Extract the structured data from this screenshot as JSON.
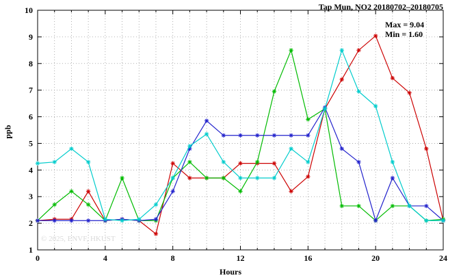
{
  "header": {
    "title": "Tap Mun, NO2 20180702–20180705"
  },
  "annotations": {
    "max_label": "Max = 9.04",
    "min_label": "Min = 1.60",
    "watermark": "© 2025, ENVF, HKUST"
  },
  "chart_data": {
    "type": "line",
    "title": "Tap Mun, NO2 20180702–20180705",
    "xlabel": "Hours",
    "ylabel": "ppb",
    "xlim": [
      0,
      24
    ],
    "ylim": [
      1,
      10
    ],
    "x_major_ticks": [
      0,
      4,
      8,
      12,
      16,
      20,
      24
    ],
    "y_ticks": [
      1,
      2,
      3,
      4,
      5,
      6,
      7,
      8,
      9,
      10
    ],
    "grid": "dotted",
    "legend": "none",
    "marker": "asterisk",
    "max": 9.04,
    "min": 1.6,
    "x": [
      0,
      1,
      2,
      3,
      4,
      5,
      6,
      7,
      8,
      9,
      10,
      11,
      12,
      13,
      14,
      15,
      16,
      17,
      18,
      19,
      20,
      21,
      22,
      23,
      24
    ],
    "series": [
      {
        "name": "red",
        "color": "#cc0000",
        "values": [
          2.1,
          2.15,
          2.15,
          3.2,
          2.1,
          2.15,
          2.1,
          1.6,
          4.25,
          3.7,
          3.7,
          3.7,
          4.25,
          4.25,
          4.25,
          3.2,
          3.75,
          6.3,
          7.4,
          8.5,
          9.04,
          7.45,
          6.9,
          4.8,
          2.1
        ]
      },
      {
        "name": "green",
        "color": "#00bb00",
        "values": [
          2.1,
          2.7,
          3.2,
          2.7,
          2.1,
          3.7,
          2.1,
          2.1,
          3.7,
          4.3,
          3.7,
          3.7,
          3.2,
          4.3,
          6.95,
          8.5,
          5.9,
          6.3,
          2.65,
          2.65,
          2.1,
          2.65,
          2.65,
          2.1,
          2.15
        ]
      },
      {
        "name": "blue",
        "color": "#2222cc",
        "values": [
          2.1,
          2.1,
          2.1,
          2.1,
          2.1,
          2.15,
          2.1,
          2.15,
          3.2,
          4.8,
          5.85,
          5.3,
          5.3,
          5.3,
          5.3,
          5.3,
          5.3,
          6.35,
          4.8,
          4.3,
          2.1,
          3.7,
          2.65,
          2.65,
          2.1
        ]
      },
      {
        "name": "cyan",
        "color": "#00cccc",
        "values": [
          4.25,
          4.3,
          4.8,
          4.3,
          2.15,
          2.1,
          2.15,
          2.7,
          3.7,
          4.9,
          5.35,
          4.3,
          3.7,
          3.7,
          3.7,
          4.8,
          4.3,
          6.3,
          8.5,
          6.95,
          6.4,
          4.3,
          2.65,
          2.1,
          2.1
        ]
      }
    ]
  }
}
